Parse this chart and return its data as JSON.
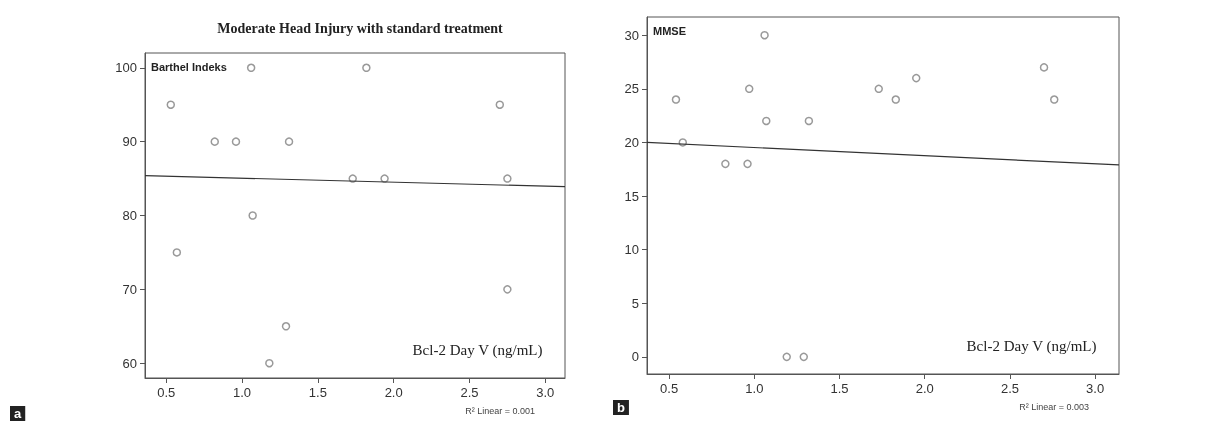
{
  "chart_data": [
    {
      "type": "scatter",
      "title": "Moderate Head Injury with standard treatment",
      "ylabel": "Barthel Indeks",
      "xlabel": "Bcl-2 Day V (ng/mL)",
      "annotations": [
        "R² Linear = 0.001",
        "a"
      ],
      "xlim": [
        0.36,
        3.13
      ],
      "ylim": [
        58,
        102
      ],
      "xticks": [
        0.5,
        {
          "value": 1,
          "label": "1.0"
        },
        1.5,
        {
          "value": 2,
          "label": "2.0"
        },
        2.5,
        {
          "value": 3,
          "label": "3.0"
        }
      ],
      "yticks": [
        60,
        70,
        80,
        90,
        100
      ],
      "grid": false,
      "series": [
        {
          "marker": "circle",
          "color": "#808080",
          "x": [
            0.53,
            0.57,
            0.82,
            0.96,
            1.06,
            1.07,
            1.18,
            1.29,
            1.31,
            1.73,
            1.82,
            1.94,
            2.7,
            2.75,
            2.75
          ],
          "values": [
            95,
            75,
            90,
            90,
            100,
            80,
            60,
            65,
            90,
            85,
            100,
            85,
            95,
            85,
            70
          ]
        },
        {
          "type": "line",
          "color": "#333333",
          "line_style": "solid",
          "x": [
            0.36,
            3.13
          ],
          "values": [
            85.4,
            83.9
          ]
        }
      ]
    },
    {
      "type": "scatter",
      "ylabel": "MMSE",
      "xlabel": "Bcl-2 Day V (ng/mL)",
      "annotations": [
        "R² Linear = 0.003",
        "b"
      ],
      "xlim": [
        0.37,
        3.14
      ],
      "ylim": [
        -1.6,
        31.7
      ],
      "xticks": [
        0.5,
        {
          "value": 1,
          "label": "1.0"
        },
        1.5,
        {
          "value": 2,
          "label": "2.0"
        },
        2.5,
        {
          "value": 3,
          "label": "3.0"
        }
      ],
      "yticks": [
        0,
        5,
        10,
        15,
        20,
        25,
        30
      ],
      "grid": false,
      "series": [
        {
          "marker": "circle",
          "color": "#808080",
          "x": [
            0.54,
            0.58,
            0.83,
            0.97,
            0.96,
            1.06,
            1.07,
            1.19,
            1.29,
            1.32,
            1.73,
            1.83,
            1.95,
            2.7,
            2.76
          ],
          "values": [
            24,
            20,
            18,
            25,
            18,
            30,
            22,
            0,
            0,
            22,
            25,
            24,
            26,
            27,
            24
          ]
        },
        {
          "type": "line",
          "color": "#333333",
          "line_style": "solid",
          "x": [
            0.37,
            3.14
          ],
          "values": [
            20.0,
            17.9
          ]
        }
      ]
    }
  ]
}
